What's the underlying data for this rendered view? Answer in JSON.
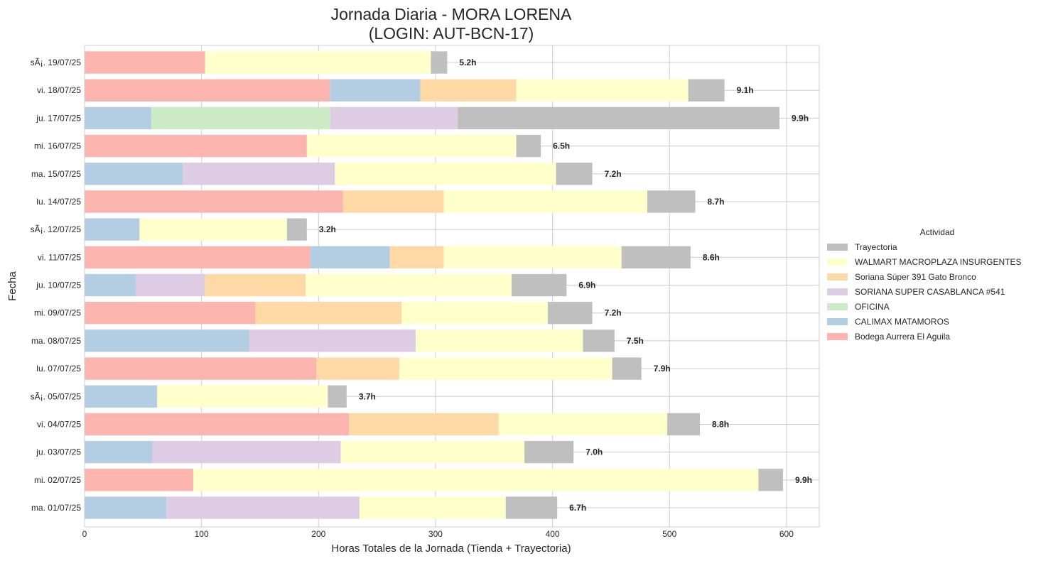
{
  "chart_data": {
    "type": "bar",
    "orientation": "horizontal",
    "stacked": true,
    "title_line1": "Jornada Diaria - MORA LORENA",
    "title_line2": "(LOGIN: AUT-BCN-17)",
    "xlabel": "Horas Totales de la Jornada (Tienda + Trayectoria)",
    "ylabel": "Fecha",
    "xlim": [
      0,
      628
    ],
    "xticks": [
      0,
      100,
      200,
      300,
      400,
      500,
      600
    ],
    "grid": true,
    "legend_title": "Actividad",
    "legend_placement": "right",
    "categories": [
      "sÃ¡. 19/07/25",
      "vi. 18/07/25",
      "ju. 17/07/25",
      "mi. 16/07/25",
      "ma. 15/07/25",
      "lu. 14/07/25",
      "sÃ¡. 12/07/25",
      "vi. 11/07/25",
      "ju. 10/07/25",
      "mi. 09/07/25",
      "ma. 08/07/25",
      "lu. 07/07/25",
      "sÃ¡. 05/07/25",
      "vi. 04/07/25",
      "ju. 03/07/25",
      "mi. 02/07/25",
      "ma. 01/07/25"
    ],
    "totals": [
      "5.2h",
      "9.1h",
      "9.9h",
      "6.5h",
      "7.2h",
      "8.7h",
      "3.2h",
      "8.6h",
      "6.9h",
      "7.2h",
      "7.5h",
      "7.9h",
      "3.7h",
      "8.8h",
      "7.0h",
      "9.9h",
      "6.7h"
    ],
    "series": [
      {
        "name": "Bodega Aurrera El Aguila",
        "color": "#fbb4ae",
        "values": [
          103,
          210,
          0,
          190,
          0,
          221,
          0,
          193,
          0,
          146,
          0,
          198,
          0,
          226,
          0,
          93,
          0
        ]
      },
      {
        "name": "CALIMAX MATAMOROS",
        "color": "#b3cde3",
        "values": [
          0,
          77,
          57,
          0,
          84,
          0,
          47,
          68,
          44,
          0,
          141,
          0,
          62,
          0,
          58,
          0,
          70
        ]
      },
      {
        "name": "OFICINA",
        "color": "#ccebc5",
        "values": [
          0,
          0,
          153,
          0,
          0,
          0,
          0,
          0,
          0,
          0,
          0,
          0,
          0,
          0,
          0,
          0,
          0
        ]
      },
      {
        "name": "SORIANA SUPER CASABLANCA #541",
        "color": "#decbe4",
        "values": [
          0,
          0,
          109,
          0,
          130,
          0,
          0,
          0,
          59,
          0,
          142,
          0,
          0,
          0,
          161,
          0,
          165
        ]
      },
      {
        "name": "Soriana Súper 391 Gato Bronco",
        "color": "#fed9a6",
        "values": [
          0,
          82,
          0,
          0,
          0,
          86,
          0,
          46,
          86,
          125,
          0,
          71,
          0,
          128,
          0,
          0,
          0
        ]
      },
      {
        "name": "WALMART MACROPLAZA INSURGENTES",
        "color": "#ffffcc",
        "values": [
          193,
          147,
          0,
          179,
          189,
          174,
          126,
          152,
          176,
          125,
          143,
          182,
          146,
          144,
          157,
          483,
          125
        ]
      },
      {
        "name": "Trayectoria",
        "color": "#bfbfbf",
        "values": [
          14,
          31,
          275,
          21,
          31,
          41,
          17,
          59,
          47,
          38,
          27,
          25,
          16,
          28,
          42,
          21,
          44
        ]
      }
    ],
    "legend_order": [
      "Trayectoria",
      "WALMART MACROPLAZA INSURGENTES",
      "Soriana Súper 391 Gato Bronco",
      "SORIANA SUPER CASABLANCA #541",
      "OFICINA",
      "CALIMAX MATAMOROS",
      "Bodega Aurrera El Aguila"
    ]
  }
}
